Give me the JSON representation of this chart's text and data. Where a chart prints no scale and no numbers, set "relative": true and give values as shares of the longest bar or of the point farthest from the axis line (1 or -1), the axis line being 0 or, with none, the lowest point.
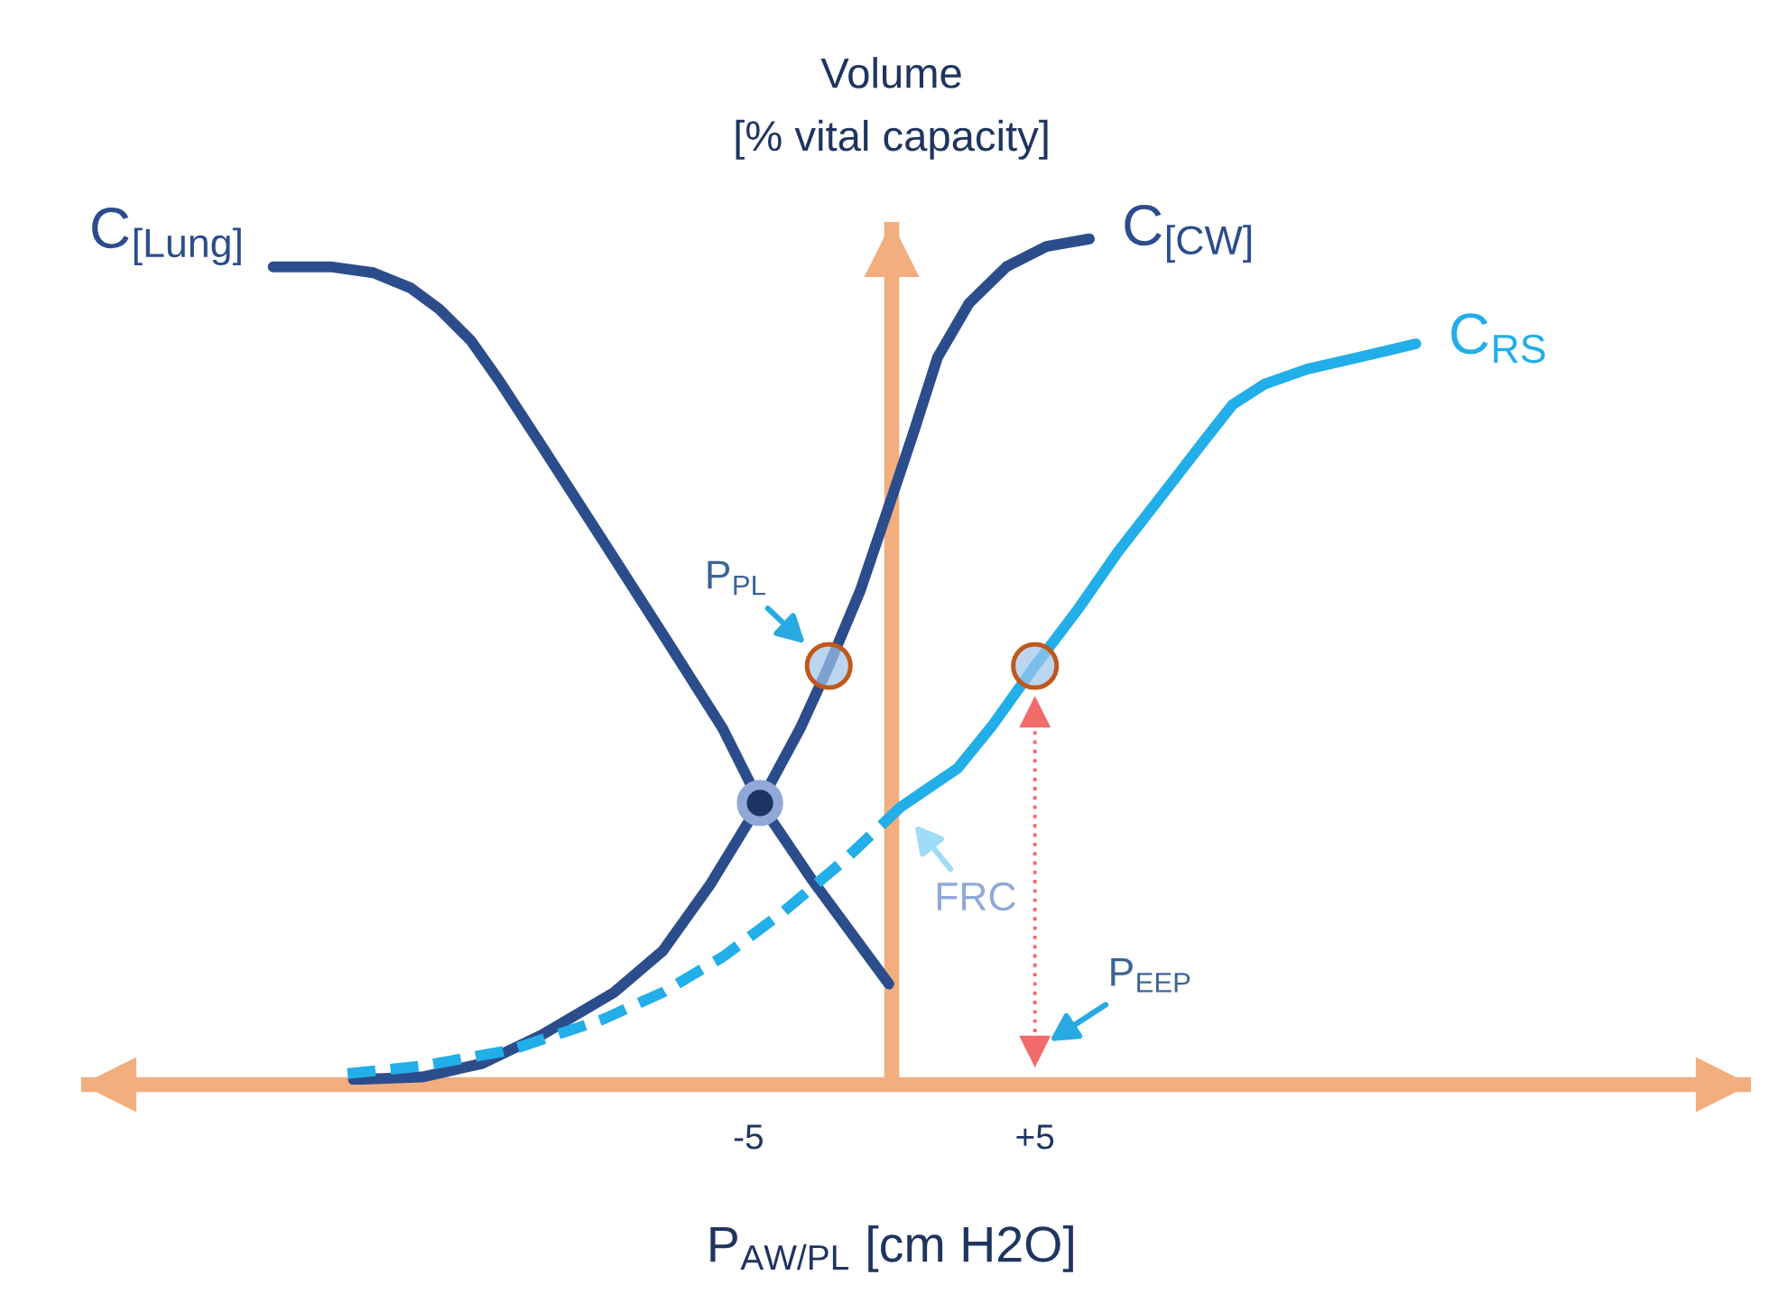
{
  "chart_data": {
    "type": "line",
    "relative": true,
    "xlabel": "P$_{AW/PL}$ [cm H2O]",
    "ylabel": "Volume\n[% vital capacity]",
    "xlim": [
      -28.3,
      30
    ],
    "xticks": [
      -5,
      {
        "value": 5,
        "label": "+5"
      }
    ],
    "tick_labels": "x",
    "ref_lines": [
      {
        "axis": "x",
        "value": 0,
        "color": "#f2ae7f"
      }
    ],
    "series": [
      {
        "name": "C$_{[Lung]}$",
        "color": "#2c4d8c",
        "x": [
          -21.6,
          -19.6,
          -18.1,
          -16.8,
          -15.8,
          -14.7,
          -13.7,
          -12.2,
          -10.1,
          -8.0,
          -5.9,
          -4.6,
          -2.8,
          -0.1
        ],
        "values": [
          0.967,
          0.967,
          0.96,
          0.942,
          0.917,
          0.88,
          0.832,
          0.754,
          0.644,
          0.533,
          0.421,
          0.333,
          0.243,
          0.119
        ]
      },
      {
        "name": "C$_{[CW]}$",
        "color": "#2c4d8c",
        "x": [
          -18.8,
          -16.4,
          -14.3,
          -12.2,
          -9.7,
          -8.0,
          -6.35,
          -4.6,
          -3.2,
          -2.2,
          -1.1,
          0.1,
          0.8,
          1.6,
          2.7,
          4.0,
          5.4,
          6.9
        ],
        "values": [
          0.006,
          0.009,
          0.025,
          0.059,
          0.109,
          0.158,
          0.236,
          0.333,
          0.421,
          0.495,
          0.584,
          0.704,
          0.775,
          0.86,
          0.924,
          0.967,
          0.991,
          1.0
        ]
      },
      {
        "name": "C$_{RS}$",
        "color": "#22aee8",
        "x": [
          0.3,
          2.3,
          3.5,
          5,
          6.5,
          7.9,
          9.6,
          10.9,
          11.9,
          13.0,
          14.5,
          16.3,
          18.3
        ],
        "values": [
          0.328,
          0.374,
          0.424,
          0.495,
          0.562,
          0.63,
          0.704,
          0.761,
          0.804,
          0.828,
          0.846,
          0.86,
          0.876
        ]
      },
      {
        "color": "#22aee8",
        "line_style": "dashed",
        "x": [
          -19.0,
          -16.4,
          -13.3,
          -10.1,
          -8.0,
          -5.9,
          -3.8,
          -1.7,
          0.3
        ],
        "values": [
          0.013,
          0.022,
          0.041,
          0.077,
          0.109,
          0.151,
          0.204,
          0.264,
          0.328
        ]
      },
      {
        "color": "#f26b6b",
        "line_style": "dotted",
        "marker": "triangle",
        "x": [
          5,
          5
        ],
        "values": [
          0.04,
          0.44
        ]
      },
      {
        "type": "scatter",
        "color": "#1c3461",
        "marker": "circle",
        "x": [
          -4.6
        ],
        "values": [
          0.333
        ]
      },
      {
        "type": "scatter",
        "color": "#c0581c",
        "marker": "circle",
        "x": [
          -2.2,
          5
        ],
        "values": [
          0.495,
          0.495
        ]
      }
    ],
    "annotations": [
      {
        "text": "P$_{PL}$",
        "x": -2.2,
        "y": 0.495
      },
      {
        "text": "FRC",
        "x": 0.3,
        "y": 0.328
      },
      {
        "text": "P$_{EEP}$",
        "x": 5,
        "y": 0.04
      }
    ]
  }
}
